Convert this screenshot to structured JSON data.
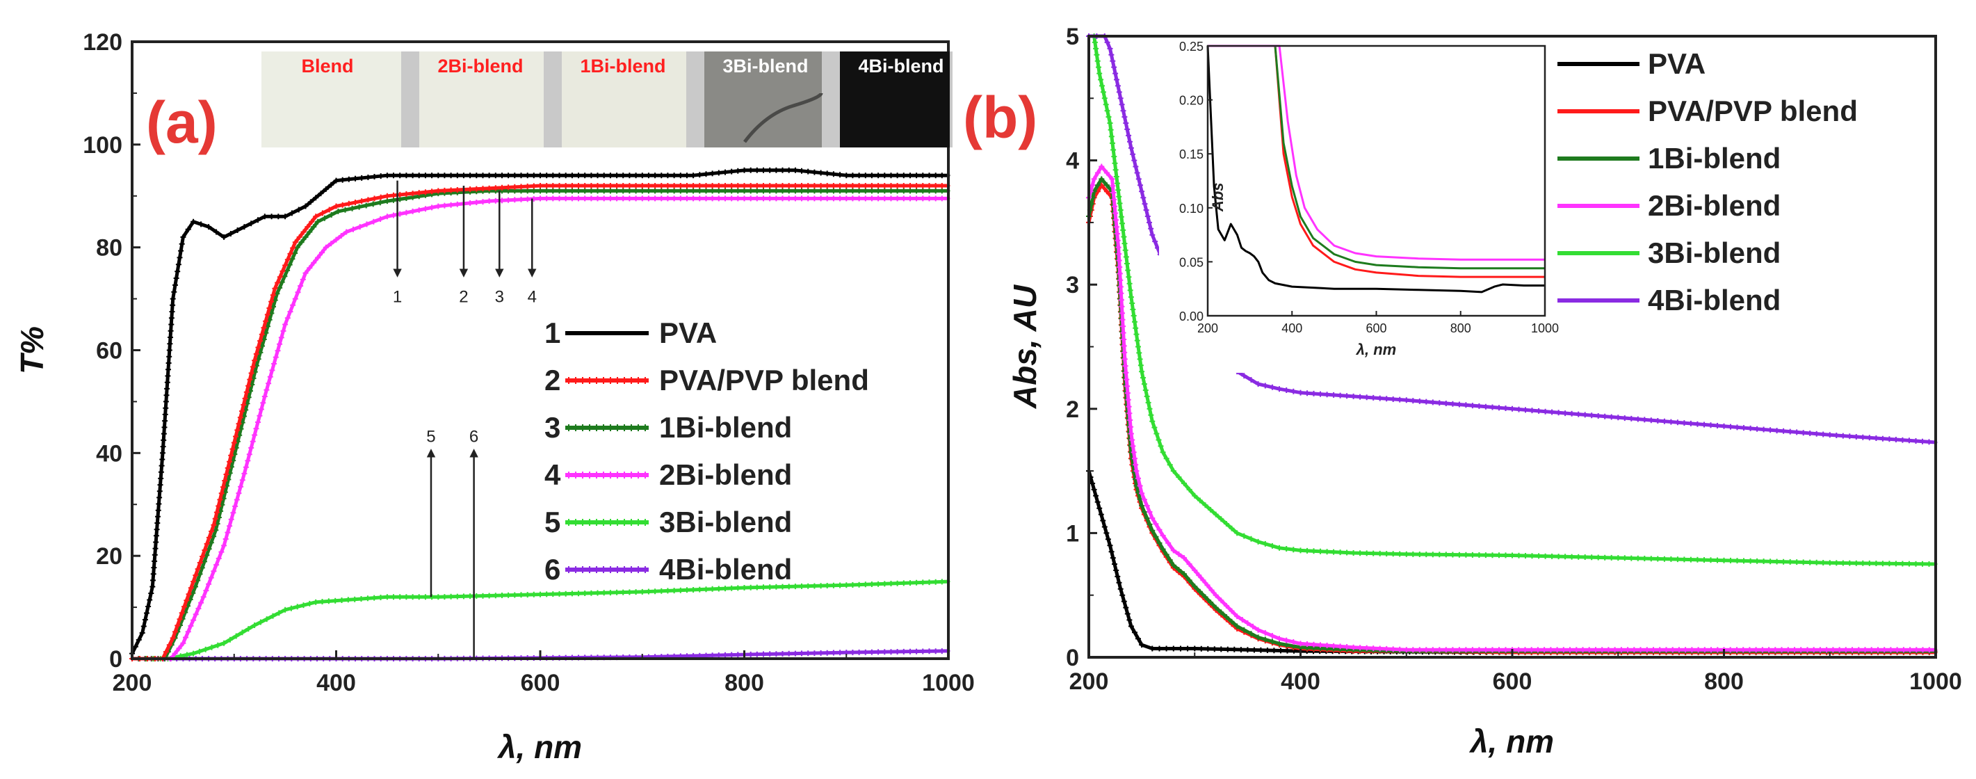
{
  "chart_data": [
    {
      "panel_label": "(a)",
      "type": "line",
      "xlabel": "λ, nm",
      "ylabel": "T%",
      "xlim": [
        200,
        1000
      ],
      "ylim": [
        0,
        120
      ],
      "xticks": [
        200,
        400,
        600,
        800,
        1000
      ],
      "yticks": [
        0,
        20,
        40,
        60,
        80,
        100,
        120
      ],
      "legend_placement": "center-right",
      "series": [
        {
          "legend_number": "1",
          "name": "PVA",
          "color": "#000000",
          "x": [
            200,
            210,
            220,
            230,
            240,
            250,
            260,
            275,
            290,
            310,
            330,
            350,
            370,
            400,
            450,
            500,
            550,
            600,
            650,
            700,
            750,
            800,
            850,
            900,
            950,
            1000
          ],
          "y": [
            1,
            5,
            14,
            40,
            70,
            82,
            85,
            84,
            82,
            84,
            86,
            86,
            88,
            93,
            94,
            94,
            94,
            94,
            94,
            94,
            94,
            95,
            95,
            94,
            94,
            94
          ]
        },
        {
          "legend_number": "2",
          "name": "PVA/PVP blend",
          "color": "#ff1a1a",
          "x": [
            200,
            230,
            240,
            260,
            280,
            300,
            320,
            340,
            360,
            380,
            400,
            450,
            500,
            550,
            600,
            700,
            800,
            900,
            1000
          ],
          "y": [
            0,
            0,
            4,
            15,
            26,
            42,
            58,
            72,
            81,
            86,
            88,
            90,
            91,
            91.5,
            92,
            92,
            92,
            92,
            92
          ]
        },
        {
          "legend_number": "3",
          "name": "1Bi-blend",
          "color": "#1e7b1e",
          "x": [
            200,
            232,
            242,
            262,
            282,
            302,
            322,
            342,
            362,
            382,
            402,
            450,
            500,
            550,
            600,
            700,
            800,
            900,
            1000
          ],
          "y": [
            0,
            0,
            4,
            14,
            25,
            41,
            57,
            71,
            80,
            85,
            87,
            89,
            90.5,
            91,
            91,
            91,
            91,
            91,
            91
          ]
        },
        {
          "legend_number": "4",
          "name": "2Bi-blend",
          "color": "#ff33ff",
          "x": [
            200,
            238,
            250,
            270,
            290,
            310,
            330,
            350,
            370,
            390,
            410,
            450,
            500,
            550,
            600,
            700,
            800,
            900,
            1000
          ],
          "y": [
            0,
            0,
            3,
            12,
            22,
            36,
            51,
            65,
            75,
            80,
            83,
            86,
            88,
            89,
            89.5,
            89.5,
            89.5,
            89.5,
            89.5
          ]
        },
        {
          "legend_number": "5",
          "name": "3Bi-blend",
          "color": "#33dd33",
          "x": [
            200,
            235,
            260,
            290,
            320,
            350,
            380,
            450,
            500,
            600,
            700,
            800,
            900,
            1000
          ],
          "y": [
            0,
            0,
            1,
            3,
            6.5,
            9.5,
            11,
            12,
            12,
            12.5,
            13,
            13.8,
            14.3,
            15
          ]
        },
        {
          "legend_number": "6",
          "name": "4Bi-blend",
          "color": "#8a2be2",
          "x": [
            200,
            500,
            700,
            800,
            900,
            1000
          ],
          "y": [
            0,
            0,
            0.3,
            0.8,
            1.2,
            1.5
          ]
        }
      ],
      "annotations": [
        {
          "label": "1",
          "x": 460,
          "arrow_from_y": 93,
          "arrow_to_y": 87,
          "dir": "down"
        },
        {
          "label": "2",
          "x": 525,
          "arrow_from_y": 92,
          "arrow_to_y": 87,
          "dir": "down"
        },
        {
          "label": "3",
          "x": 560,
          "arrow_from_y": 91,
          "arrow_to_y": 87,
          "dir": "down"
        },
        {
          "label": "4",
          "x": 592,
          "arrow_from_y": 89.5,
          "arrow_to_y": 87,
          "dir": "down"
        },
        {
          "label": "5",
          "x": 493,
          "arrow_from_y": 12,
          "arrow_to_y": 40,
          "dir": "up"
        },
        {
          "label": "6",
          "x": 535,
          "arrow_from_y": 0,
          "arrow_to_y": 40,
          "dir": "up"
        }
      ],
      "sample_photo": {
        "samples": [
          {
            "label": "Blend",
            "label_color": "#ff2020",
            "film_color": "#eceee4"
          },
          {
            "label": "2Bi-blend",
            "label_color": "#ff2020",
            "film_color": "#ebece2"
          },
          {
            "label": "1Bi-blend",
            "label_color": "#ff2020",
            "film_color": "#e9eadf"
          },
          {
            "label": "3Bi-blend",
            "label_color": "#ffffff",
            "film_color": "#8a8a86"
          },
          {
            "label": "4Bi-blend",
            "label_color": "#ffffff",
            "film_color": "#111111"
          }
        ]
      }
    },
    {
      "panel_label": "(b)",
      "type": "line",
      "xlabel": "λ, nm",
      "ylabel": "Abs, AU",
      "xlim": [
        200,
        1000
      ],
      "ylim": [
        0,
        5
      ],
      "xticks": [
        200,
        400,
        600,
        800,
        1000
      ],
      "yticks": [
        0,
        1,
        2,
        3,
        4,
        5
      ],
      "legend_placement": "top-right",
      "series": [
        {
          "name": "PVA",
          "color": "#000000",
          "x": [
            200,
            210,
            220,
            230,
            240,
            250,
            260,
            300,
            400,
            600,
            800,
            1000
          ],
          "y": [
            1.5,
            1.2,
            0.9,
            0.55,
            0.25,
            0.1,
            0.07,
            0.07,
            0.05,
            0.04,
            0.04,
            0.04
          ]
        },
        {
          "name": "PVA/PVP blend",
          "color": "#ff1a1a",
          "x": [
            200,
            205,
            212,
            222,
            228,
            234,
            240,
            245,
            250,
            260,
            270,
            280,
            290,
            300,
            320,
            340,
            360,
            380,
            400,
            450,
            500,
            600,
            800,
            1000
          ],
          "y": [
            3.5,
            3.7,
            3.8,
            3.7,
            3.1,
            2.2,
            1.6,
            1.35,
            1.2,
            1.0,
            0.85,
            0.72,
            0.65,
            0.55,
            0.38,
            0.23,
            0.15,
            0.1,
            0.07,
            0.05,
            0.05,
            0.04,
            0.04,
            0.04
          ]
        },
        {
          "name": "1Bi-blend",
          "color": "#1e7b1e",
          "x": [
            200,
            205,
            212,
            222,
            228,
            234,
            240,
            245,
            250,
            260,
            270,
            280,
            290,
            300,
            320,
            340,
            360,
            380,
            400,
            450,
            500,
            600,
            800,
            1000
          ],
          "y": [
            3.55,
            3.75,
            3.85,
            3.75,
            3.15,
            2.25,
            1.65,
            1.38,
            1.22,
            1.02,
            0.87,
            0.74,
            0.67,
            0.57,
            0.4,
            0.25,
            0.16,
            0.11,
            0.08,
            0.06,
            0.05,
            0.05,
            0.05,
            0.05
          ]
        },
        {
          "name": "2Bi-blend",
          "color": "#ff33ff",
          "x": [
            200,
            205,
            212,
            222,
            228,
            234,
            240,
            245,
            250,
            260,
            270,
            280,
            290,
            300,
            320,
            340,
            360,
            380,
            400,
            450,
            500,
            600,
            800,
            1000
          ],
          "y": [
            3.7,
            3.85,
            3.95,
            3.85,
            3.3,
            2.4,
            1.8,
            1.5,
            1.32,
            1.12,
            0.98,
            0.86,
            0.8,
            0.7,
            0.5,
            0.33,
            0.22,
            0.15,
            0.11,
            0.08,
            0.06,
            0.06,
            0.06,
            0.06
          ]
        },
        {
          "name": "3Bi-blend",
          "color": "#33dd33",
          "x": [
            200,
            205,
            210,
            220,
            230,
            240,
            250,
            260,
            270,
            280,
            290,
            300,
            320,
            340,
            360,
            380,
            400,
            450,
            500,
            600,
            700,
            800,
            900,
            1000
          ],
          "y": [
            5,
            5,
            4.7,
            4.3,
            3.6,
            2.9,
            2.3,
            1.9,
            1.65,
            1.5,
            1.4,
            1.3,
            1.15,
            1.0,
            0.93,
            0.88,
            0.86,
            0.84,
            0.83,
            0.82,
            0.8,
            0.78,
            0.76,
            0.75
          ]
        },
        {
          "name": "4Bi-blend",
          "color": "#8a2be2",
          "x": [
            200,
            215,
            220,
            240,
            260,
            280,
            300,
            320,
            340,
            360,
            380,
            400,
            450,
            500,
            600,
            700,
            800,
            900,
            1000
          ],
          "y": [
            5,
            5,
            4.9,
            4.1,
            3.4,
            2.98,
            2.7,
            2.45,
            2.3,
            2.2,
            2.16,
            2.13,
            2.1,
            2.07,
            2.0,
            1.93,
            1.86,
            1.79,
            1.73
          ]
        }
      ],
      "inset": {
        "ylabel": "Abs",
        "xlabel": "λ, nm",
        "xlim": [
          200,
          1000
        ],
        "ylim": [
          0,
          0.25
        ],
        "xticks": [
          200,
          400,
          600,
          800,
          1000
        ],
        "yticks": [
          "0.00",
          "0.05",
          "0.10",
          "0.15",
          "0.20",
          "0.25"
        ],
        "series": [
          {
            "name": "PVA",
            "color": "#000000",
            "x": [
              200,
              215,
              225,
              240,
              255,
              270,
              280,
              290,
              300,
              310,
              320,
              330,
              345,
              360,
              400,
              450,
              500,
              600,
              700,
              800,
              850,
              880,
              900,
              950,
              1000
            ],
            "y": [
              0.25,
              0.12,
              0.08,
              0.07,
              0.085,
              0.075,
              0.063,
              0.06,
              0.058,
              0.055,
              0.05,
              0.04,
              0.033,
              0.03,
              0.027,
              0.026,
              0.025,
              0.025,
              0.024,
              0.023,
              0.022,
              0.027,
              0.029,
              0.028,
              0.028
            ]
          },
          {
            "name": "PVA/PVP blend",
            "color": "#ff1a1a",
            "x": [
              200,
              360,
              380,
              400,
              420,
              450,
              500,
              550,
              600,
              700,
              800,
              900,
              1000
            ],
            "y": [
              0.25,
              0.25,
              0.15,
              0.11,
              0.085,
              0.065,
              0.05,
              0.043,
              0.04,
              0.037,
              0.036,
              0.036,
              0.036
            ]
          },
          {
            "name": "1Bi-blend",
            "color": "#1e7b1e",
            "x": [
              200,
              360,
              380,
              400,
              420,
              450,
              500,
              550,
              600,
              700,
              800,
              900,
              1000
            ],
            "y": [
              0.25,
              0.25,
              0.16,
              0.12,
              0.092,
              0.072,
              0.057,
              0.05,
              0.047,
              0.045,
              0.044,
              0.044,
              0.044
            ]
          },
          {
            "name": "2Bi-blend",
            "color": "#ff33ff",
            "x": [
              200,
              370,
              390,
              410,
              430,
              460,
              500,
              550,
              600,
              700,
              800,
              900,
              1000
            ],
            "y": [
              0.25,
              0.25,
              0.18,
              0.13,
              0.1,
              0.08,
              0.065,
              0.058,
              0.055,
              0.053,
              0.052,
              0.052,
              0.052
            ]
          }
        ]
      }
    }
  ]
}
